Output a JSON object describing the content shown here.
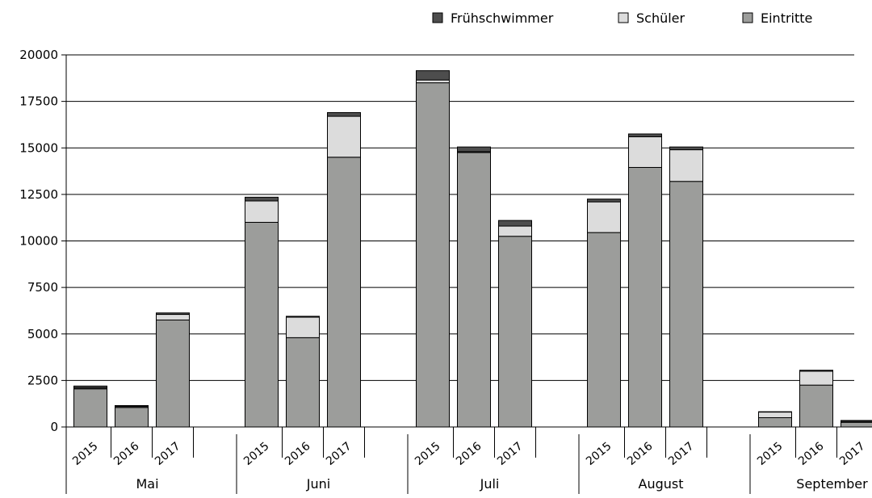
{
  "chart_data": {
    "type": "bar",
    "stacked": true,
    "groups": [
      {
        "label": "Mai",
        "categories": [
          "2015",
          "2016",
          "2017"
        ]
      },
      {
        "label": "Juni",
        "categories": [
          "2015",
          "2016",
          "2017"
        ]
      },
      {
        "label": "Juli",
        "categories": [
          "2015",
          "2016",
          "2017"
        ]
      },
      {
        "label": "August",
        "categories": [
          "2015",
          "2016",
          "2017"
        ]
      },
      {
        "label": "September",
        "categories": [
          "2015",
          "2016",
          "2017"
        ]
      }
    ],
    "series": [
      {
        "name": "Eintritte",
        "color": "#9c9d9b",
        "values": [
          2050,
          1050,
          5750,
          11000,
          4800,
          14500,
          18500,
          14750,
          10250,
          10450,
          13950,
          13200,
          500,
          2250,
          250
        ]
      },
      {
        "name": "Schüler",
        "color": "#dcdcdc",
        "values": [
          50,
          50,
          300,
          1150,
          1100,
          2200,
          150,
          50,
          550,
          1650,
          1650,
          1700,
          300,
          750,
          50
        ]
      },
      {
        "name": "Frühschwimmer",
        "color": "#4d4d4d",
        "values": [
          100,
          50,
          80,
          200,
          50,
          200,
          500,
          250,
          300,
          150,
          150,
          150,
          20,
          50,
          50
        ]
      }
    ],
    "legend_order": [
      "Frühschwimmer",
      "Schüler",
      "Eintritte"
    ],
    "legend_position": "top-right",
    "ylim": [
      0,
      20000
    ],
    "yticks": [
      0,
      2500,
      5000,
      7500,
      10000,
      12500,
      15000,
      17500,
      20000
    ],
    "grid": "horizontal",
    "title": "",
    "xlabel": "",
    "ylabel": ""
  }
}
